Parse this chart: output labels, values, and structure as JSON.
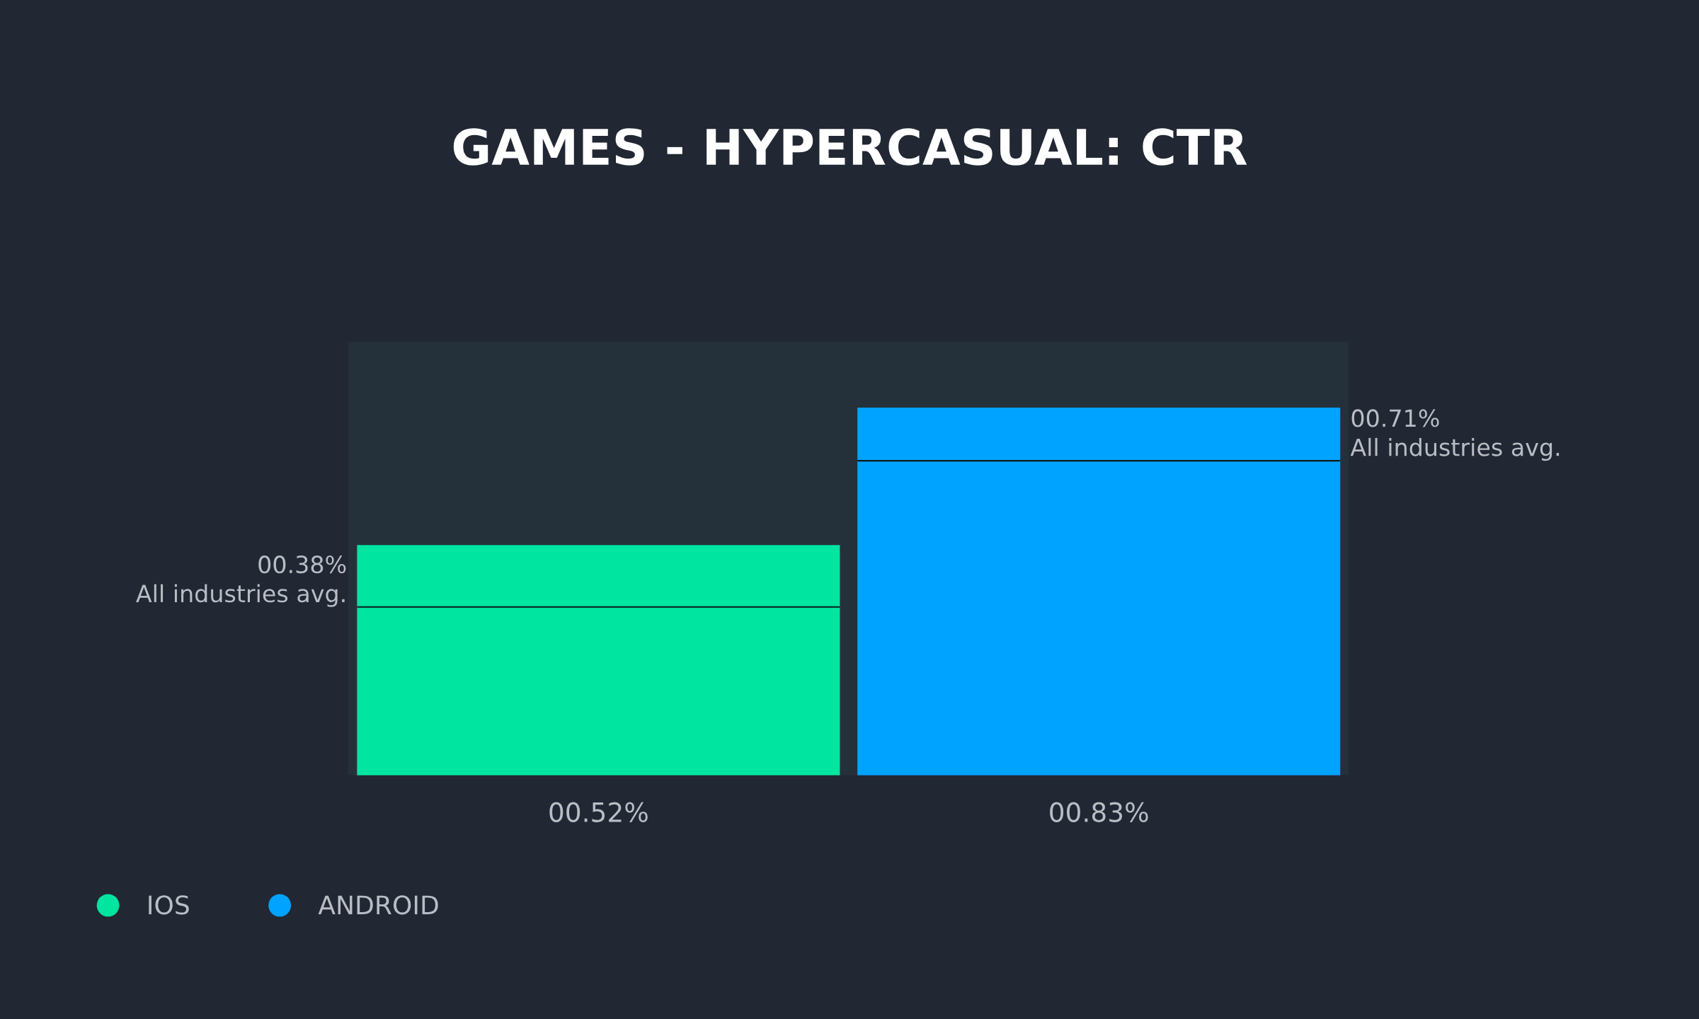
{
  "chart_data": {
    "type": "bar",
    "title": "GAMES - HYPERCASUAL: CTR",
    "categories": [
      null,
      null
    ],
    "stacked": true,
    "series": [
      {
        "name": "IOS",
        "color": "#00e5a0",
        "values": [
          0.52,
          0
        ],
        "value_labels": [
          "00.52%",
          null
        ]
      },
      {
        "name": "ANDROID",
        "color": "#00a3ff",
        "values": [
          0,
          0.83
        ],
        "value_labels": [
          null,
          "00.83%"
        ]
      }
    ],
    "ref_lines": [
      {
        "axis": "y",
        "value": 0.38,
        "label": "00.38%\nAll industries avg.",
        "color": "#0d1a1f"
      },
      {
        "axis": "y",
        "value": 0.71,
        "label": "00.71%\nAll industries avg.",
        "color": "#0d1a1f"
      }
    ],
    "legend": "bottom left",
    "grid": false
  }
}
